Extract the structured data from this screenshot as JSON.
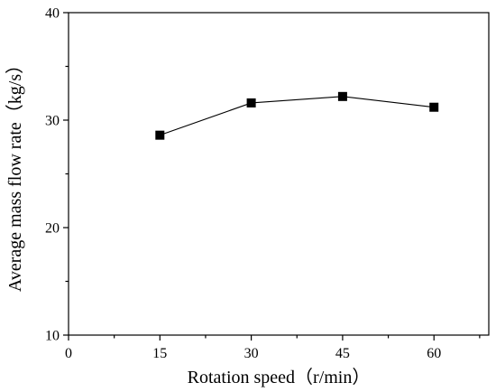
{
  "chart_data": {
    "type": "line",
    "xlabel": "Rotation speed（r/min）",
    "ylabel": "Average mass flow rate（kg/s）",
    "xlim": [
      0,
      69
    ],
    "ylim": [
      10,
      40
    ],
    "x_ticks": [
      0,
      15,
      30,
      45,
      60
    ],
    "y_ticks": [
      10,
      20,
      30,
      40
    ],
    "x_minor_ticks": [
      7.5,
      22.5,
      37.5,
      52.5,
      67.5
    ],
    "y_minor_ticks": [
      15,
      25,
      35
    ],
    "grid": false,
    "marker": "square",
    "series": [
      {
        "x": [
          15,
          30,
          45,
          60
        ],
        "values": [
          28.6,
          31.6,
          32.2,
          31.2
        ]
      }
    ]
  }
}
